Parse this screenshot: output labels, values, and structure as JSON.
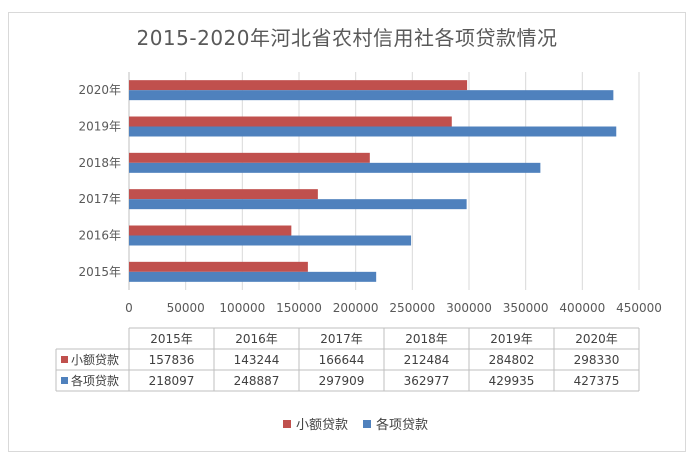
{
  "chart_data": {
    "type": "bar",
    "orientation": "horizontal",
    "title": "2015-2020年河北省农村信用社各项贷款情况",
    "categories": [
      "2015年",
      "2016年",
      "2017年",
      "2018年",
      "2019年",
      "2020年"
    ],
    "series": [
      {
        "name": "小额贷款",
        "color": "#c0504d",
        "values": [
          157836,
          143244,
          166644,
          212484,
          284802,
          298330
        ]
      },
      {
        "name": "各项贷款",
        "color": "#4f81bd",
        "values": [
          218097,
          248887,
          297909,
          362977,
          429935,
          427375
        ]
      }
    ],
    "xlim": [
      0,
      450000
    ],
    "xticks": [
      "0",
      "50000",
      "100000",
      "150000",
      "200000",
      "250000",
      "300000",
      "350000",
      "400000",
      "450000"
    ],
    "grid": "vertical",
    "data_table": true,
    "legend_position": "bottom"
  }
}
